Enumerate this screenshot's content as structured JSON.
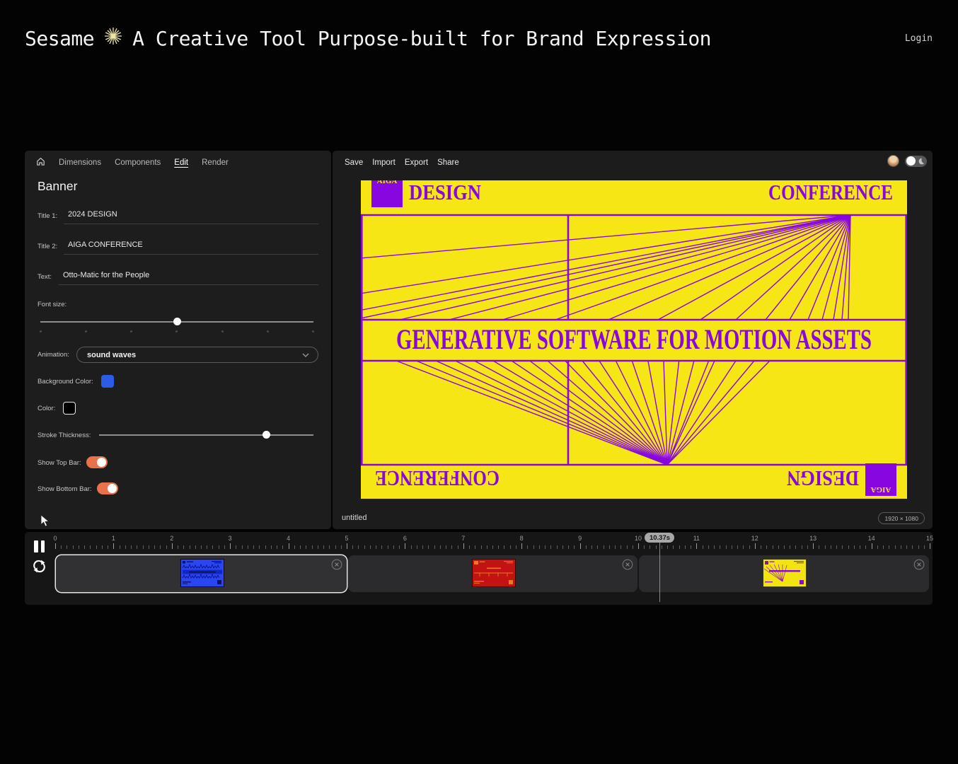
{
  "header": {
    "brand": "Sesame",
    "star_icon": "starburst-icon",
    "tagline": "A Creative Tool Purpose-built for Brand Expression",
    "login_label": "Login"
  },
  "editor": {
    "nav": {
      "home_icon": "home-icon",
      "items": [
        {
          "label": "Dimensions",
          "active": false
        },
        {
          "label": "Components",
          "active": false
        },
        {
          "label": "Edit",
          "active": true
        },
        {
          "label": "Render",
          "active": false
        }
      ]
    },
    "title": "Banner",
    "fields": {
      "title1": {
        "label": "Title 1:",
        "value": "2024 DESIGN"
      },
      "title2": {
        "label": "Title 2:",
        "value": "AIGA CONFERENCE"
      },
      "text": {
        "label": "Text:",
        "value": "Otto-Matic for the People"
      },
      "font_size": {
        "label": "Font size:",
        "percent": 50
      },
      "animation": {
        "label": "Animation:",
        "value": "sound waves"
      },
      "background_color": {
        "label": "Background Color:",
        "value": "#2b5ce8"
      },
      "color": {
        "label": "Color:",
        "value": "#000000"
      },
      "stroke": {
        "label": "Stroke Thickness:",
        "percent": 78
      },
      "top_bar": {
        "label": "Show Top Bar:",
        "on": true
      },
      "bottom_bar": {
        "label": "Show Bottom Bar:",
        "on": true
      }
    }
  },
  "preview": {
    "menu": {
      "save": "Save",
      "import": "Import",
      "export": "Export",
      "share": "Share"
    },
    "canvas": {
      "bg_color": "#f7e616",
      "fg_color": "#8806e0",
      "logo_text": "AIGA",
      "title1": "DESIGN",
      "title2": "CONFERENCE",
      "tagline": "GENERATIVE SOFTWARE FOR MOTION ASSETS"
    },
    "filename": "untitled",
    "dimensions_badge": "1920 × 1080"
  },
  "timeline": {
    "current_time": "10.37s",
    "ruler": [
      0,
      1,
      2,
      3,
      4,
      5,
      6,
      7,
      8,
      9,
      10,
      11,
      12,
      13,
      14,
      15
    ],
    "clips": [
      {
        "variant": "blue",
        "selected": true
      },
      {
        "variant": "red",
        "selected": false
      },
      {
        "variant": "yellow",
        "selected": false
      }
    ],
    "icons": {
      "pause": "pause-icon",
      "loop": "loop-icon",
      "close": "close-icon"
    }
  }
}
